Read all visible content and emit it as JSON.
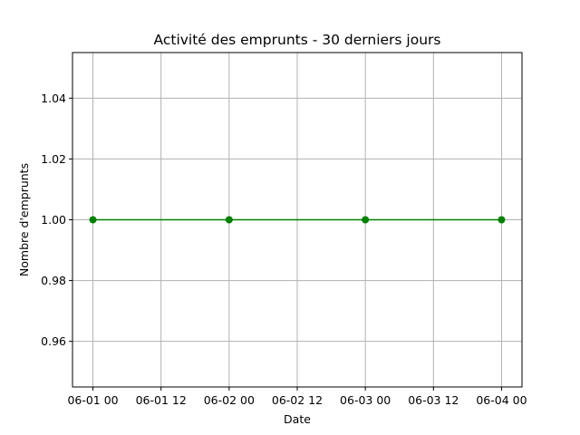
{
  "chart_data": {
    "type": "line",
    "title": "Activité des emprunts - 30 derniers jours",
    "xlabel": "Date",
    "ylabel": "Nombre d'emprunts",
    "x": [
      "2024-06-01T00:00",
      "2024-06-02T00:00",
      "2024-06-03T00:00",
      "2024-06-04T00:00"
    ],
    "series": [
      {
        "values": [
          1.0,
          1.0,
          1.0,
          1.0
        ],
        "color": "#008000",
        "marker": "circle"
      }
    ],
    "x_ticks": [
      "06-01 00",
      "06-01 12",
      "06-02 00",
      "06-02 12",
      "06-03 00",
      "06-03 12",
      "06-04 00"
    ],
    "y_ticks": [
      "0.96",
      "0.98",
      "1.00",
      "1.02",
      "1.04"
    ],
    "ylim": [
      0.945,
      1.055
    ],
    "grid": true
  }
}
